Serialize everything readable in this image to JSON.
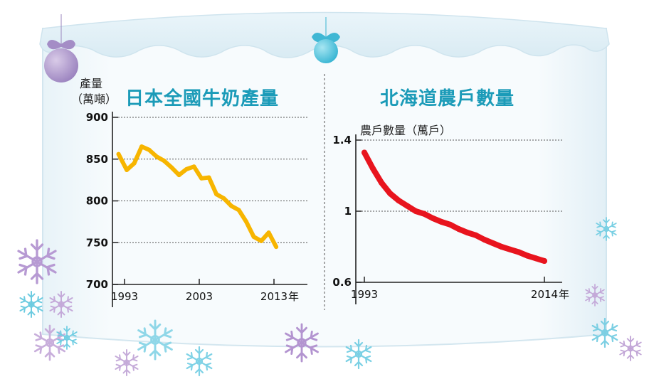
{
  "charts": [
    {
      "title": "日本全國牛奶產量",
      "unit_line1": "產量",
      "unit_line2": "（萬噸）",
      "year_suffix": "年",
      "color": "#f7b500",
      "chart_data": {
        "type": "line",
        "title": "日本全國牛奶產量",
        "ylabel": "產量（萬噸）",
        "ylim": [
          700,
          900
        ],
        "yticks": [
          900,
          850,
          800,
          750,
          700
        ],
        "xlim": [
          1993,
          2013
        ],
        "xticks": [
          1993,
          2003,
          2013
        ],
        "grid": "horizontal dotted",
        "x": [
          1992.2,
          1993.3,
          1994.3,
          1995.3,
          1996.3,
          1997.3,
          1998.3,
          1999.3,
          2000.3,
          2001.3,
          2002.3,
          2003.3,
          2004.3,
          2005.3,
          2006.3,
          2007.3,
          2008.3,
          2009.3,
          2010.3,
          2011.3,
          2012.3,
          2013.3
        ],
        "values": [
          856,
          837,
          845,
          865,
          861,
          853,
          848,
          840,
          831,
          838,
          841,
          827,
          828,
          808,
          803,
          794,
          789,
          775,
          757,
          752,
          762,
          745
        ]
      }
    },
    {
      "title": "北海道農戶數量",
      "unit_line1": "農戶數量（萬戶）",
      "year_suffix": "年",
      "color": "#e8141e",
      "chart_data": {
        "type": "line",
        "title": "北海道農戶數量",
        "ylabel": "農戶數量（萬戶）",
        "ylim": [
          0.6,
          1.4
        ],
        "yticks": [
          1.4,
          1,
          0.6
        ],
        "xlim": [
          1993,
          2014
        ],
        "xticks": [
          1993,
          2014
        ],
        "grid": "horizontal dotted",
        "x": [
          1993,
          1994,
          1995,
          1996,
          1997,
          1998,
          1999,
          2000,
          2001,
          2002,
          2003,
          2004,
          2005,
          2006,
          2007,
          2008,
          2009,
          2010,
          2011,
          2012,
          2013,
          2014
        ],
        "values": [
          1.33,
          1.24,
          1.16,
          1.1,
          1.06,
          1.03,
          1.0,
          0.985,
          0.96,
          0.94,
          0.925,
          0.9,
          0.88,
          0.865,
          0.84,
          0.82,
          0.8,
          0.785,
          0.77,
          0.75,
          0.735,
          0.72
        ]
      }
    }
  ]
}
